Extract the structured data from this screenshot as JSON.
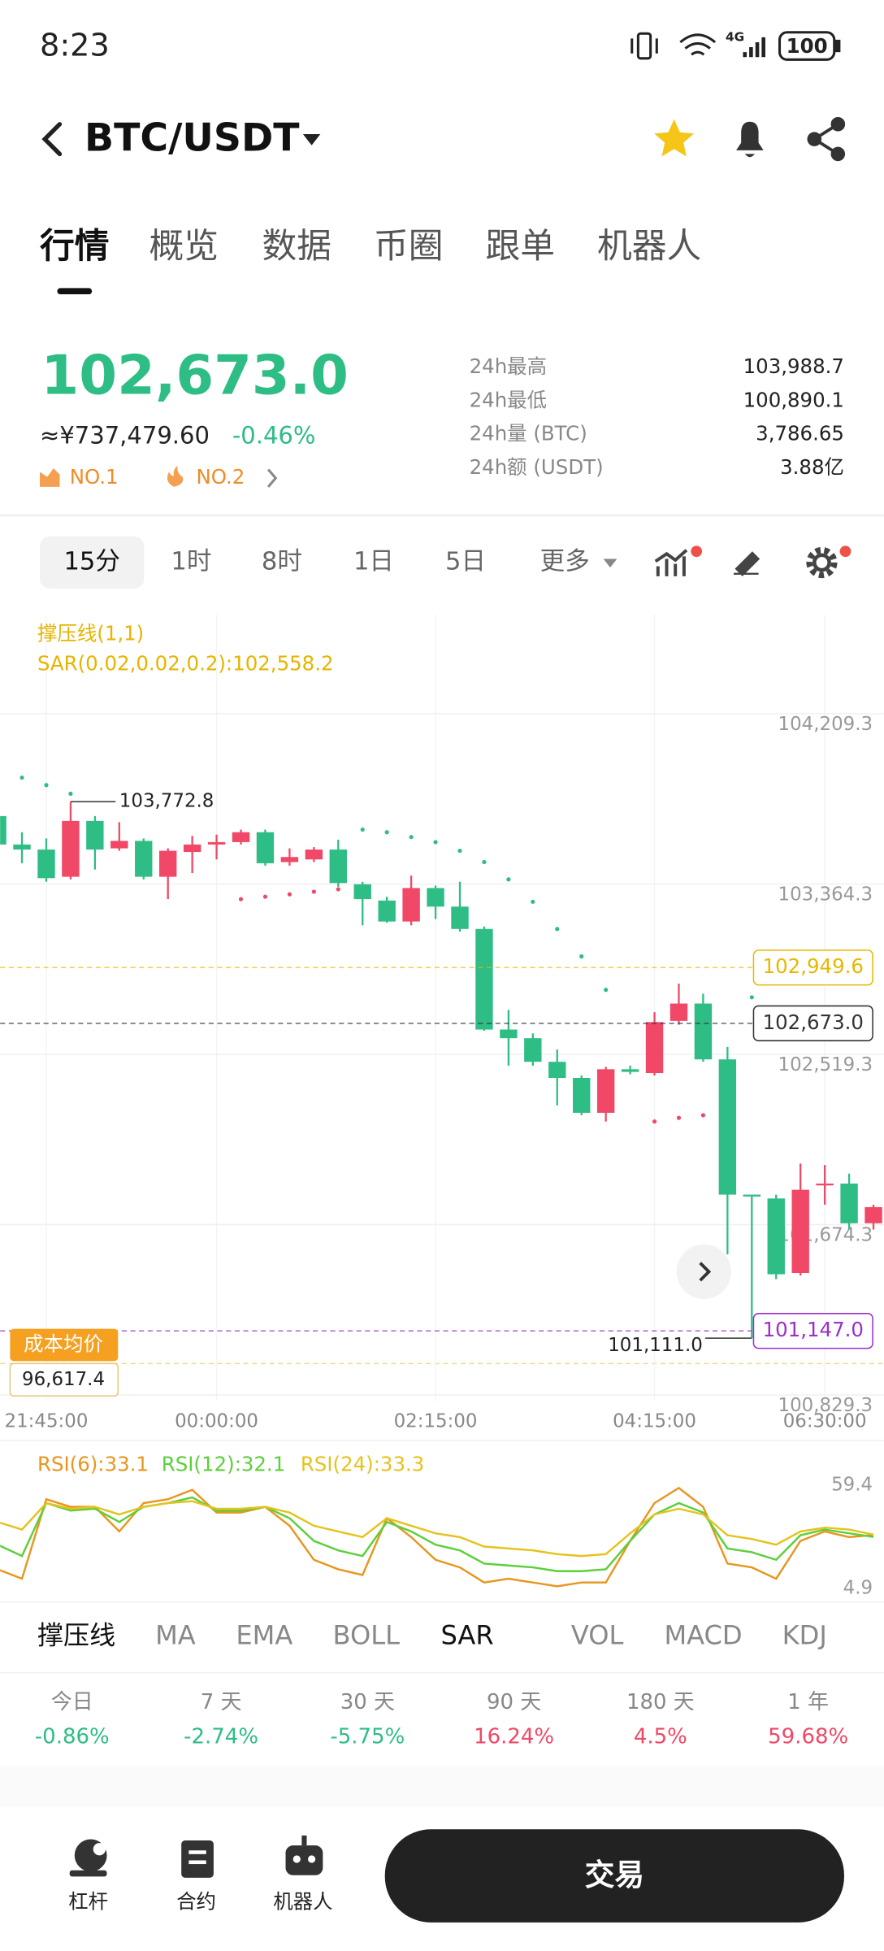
{
  "status": {
    "time": "8:23",
    "network": "4G",
    "battery": "100"
  },
  "header": {
    "pair": "BTC/USDT"
  },
  "tabs": [
    "行情",
    "概览",
    "数据",
    "币圈",
    "跟单",
    "机器人"
  ],
  "ticker": {
    "price": "102,673.0",
    "cny": "≈¥737,479.60",
    "change": "-0.46%",
    "ranks": [
      "NO.1",
      "NO.2"
    ],
    "stats": [
      {
        "label": "24h最高",
        "value": "103,988.7"
      },
      {
        "label": "24h最低",
        "value": "100,890.1"
      },
      {
        "label": "24h量 (BTC)",
        "value": "3,786.65"
      },
      {
        "label": "24h额 (USDT)",
        "value": "3.88亿"
      }
    ]
  },
  "intervals": [
    "15分",
    "1时",
    "8时",
    "1日",
    "5日",
    "更多"
  ],
  "chart": {
    "type": "candlestick",
    "indicator_labels": [
      "撑压线(1,1)",
      "SAR(0.02,0.02,0.2):102,558.2"
    ],
    "up_color": "#f04866",
    "down_color": "#2ebd85",
    "sar_color": "#2ebd85",
    "sar_below_color": "#f04866",
    "ylim": [
      100800,
      104700
    ],
    "yticks": [
      {
        "value": 104209.3,
        "label": "104,209.3"
      },
      {
        "value": 103364.3,
        "label": "103,364.3"
      },
      {
        "value": 102519.3,
        "label": "102,519.3"
      },
      {
        "value": 101674.3,
        "label": "101,674.3"
      },
      {
        "value": 100829.3,
        "label": "100,829.3"
      }
    ],
    "categories": [
      null,
      null,
      "21:45:00",
      null,
      null,
      null,
      null,
      null,
      null,
      "00:00:00",
      null,
      null,
      null,
      null,
      null,
      null,
      null,
      null,
      "02:15:00",
      null,
      null,
      null,
      null,
      null,
      null,
      null,
      null,
      "04:15:00",
      null,
      null,
      null,
      null,
      null,
      null,
      "06:30:00",
      null,
      null
    ],
    "candles": [
      {
        "open": 103701,
        "high": 103714,
        "low": 103529,
        "close": 103560
      },
      {
        "open": 103560,
        "high": 103621,
        "low": 103467,
        "close": 103535
      },
      {
        "open": 103535,
        "high": 103590,
        "low": 103375,
        "close": 103393
      },
      {
        "open": 103400,
        "high": 103772.8,
        "low": 103387,
        "close": 103677
      },
      {
        "open": 103677,
        "high": 103701,
        "low": 103436,
        "close": 103535
      },
      {
        "open": 103541,
        "high": 103671,
        "low": 103529,
        "close": 103578
      },
      {
        "open": 103578,
        "high": 103590,
        "low": 103387,
        "close": 103400
      },
      {
        "open": 103400,
        "high": 103541,
        "low": 103289,
        "close": 103529
      },
      {
        "open": 103523,
        "high": 103603,
        "low": 103418,
        "close": 103560
      },
      {
        "open": 103560,
        "high": 103609,
        "low": 103486,
        "close": 103572
      },
      {
        "open": 103572,
        "high": 103634,
        "low": 103560,
        "close": 103621
      },
      {
        "open": 103621,
        "high": 103634,
        "low": 103455,
        "close": 103467
      },
      {
        "open": 103473,
        "high": 103541,
        "low": 103455,
        "close": 103498
      },
      {
        "open": 103486,
        "high": 103547,
        "low": 103473,
        "close": 103535
      },
      {
        "open": 103535,
        "high": 103584,
        "low": 103350,
        "close": 103369
      },
      {
        "open": 103363,
        "high": 103375,
        "low": 103159,
        "close": 103289
      },
      {
        "open": 103282,
        "high": 103301,
        "low": 103172,
        "close": 103178
      },
      {
        "open": 103178,
        "high": 103406,
        "low": 103159,
        "close": 103344
      },
      {
        "open": 103344,
        "high": 103356,
        "low": 103190,
        "close": 103252
      },
      {
        "open": 103252,
        "high": 103375,
        "low": 103128,
        "close": 103141
      },
      {
        "open": 103141,
        "high": 103153,
        "low": 102636,
        "close": 102642
      },
      {
        "open": 102642,
        "high": 102740,
        "low": 102463,
        "close": 102599
      },
      {
        "open": 102599,
        "high": 102623,
        "low": 102463,
        "close": 102482
      },
      {
        "open": 102482,
        "high": 102543,
        "low": 102266,
        "close": 102402
      },
      {
        "open": 102402,
        "high": 102414,
        "low": 102217,
        "close": 102229
      },
      {
        "open": 102229,
        "high": 102457,
        "low": 102186,
        "close": 102445
      },
      {
        "open": 102445,
        "high": 102463,
        "low": 102420,
        "close": 102432
      },
      {
        "open": 102426,
        "high": 102728,
        "low": 102414,
        "close": 102679
      },
      {
        "open": 102685,
        "high": 102870,
        "low": 102666,
        "close": 102771
      },
      {
        "open": 102771,
        "high": 102820,
        "low": 102482,
        "close": 102494
      },
      {
        "open": 102494,
        "high": 102556,
        "low": 101527,
        "close": 101823
      },
      {
        "open": 101823,
        "high": 101823,
        "low": 101111,
        "close": 101816
      },
      {
        "open": 101804,
        "high": 101823,
        "low": 101404,
        "close": 101428
      },
      {
        "open": 101434,
        "high": 101977,
        "low": 101422,
        "close": 101847
      },
      {
        "open": 101872,
        "high": 101970,
        "low": 101773,
        "close": 101878
      },
      {
        "open": 101878,
        "high": 101927,
        "low": 101650,
        "close": 101681
      },
      {
        "open": 101681,
        "high": 101773,
        "low": 101650,
        "close": 101761
      }
    ],
    "sar": [
      null,
      103892,
      103855,
      103812,
      null,
      null,
      null,
      null,
      null,
      null,
      103289,
      103301,
      103313,
      103326,
      103338,
      103634,
      103621,
      103597,
      103572,
      103529,
      103473,
      103387,
      103276,
      103141,
      103005,
      102839,
      null,
      102186,
      102204,
      102217,
      null,
      102802,
      null,
      null,
      null,
      null,
      null
    ],
    "price_lines": [
      {
        "value": 102949.6,
        "label": "102,949.6",
        "color": "#e6b800"
      },
      {
        "value": 102673.0,
        "label": "102,673.0",
        "color": "#333333"
      },
      {
        "value": 101147.0,
        "label": "101,147.0",
        "color": "#9b30c8"
      }
    ],
    "high": {
      "value": 103772.8,
      "label": "103,772.8"
    },
    "low": {
      "value": 101111.0,
      "label": "101,111.0"
    },
    "cost": {
      "title": "成本均价",
      "label": "96,617.4"
    }
  },
  "rsi": {
    "type": "line",
    "ylim": [
      4.9,
      59.4
    ],
    "yticks": [
      59.4,
      4.9
    ],
    "series": [
      {
        "name": "RSI(6):33.1",
        "color": "#e8961e",
        "values": [
          15,
          10,
          52,
          48,
          48,
          35,
          50,
          52,
          57,
          45,
          45,
          48,
          38,
          20,
          15,
          12,
          42,
          32,
          20,
          16,
          8,
          10,
          8,
          6,
          8,
          8,
          30,
          50,
          58,
          48,
          18,
          16,
          10,
          30,
          35,
          32,
          33.1
        ]
      },
      {
        "name": "RSI(12):32.1",
        "color": "#5ccf3a",
        "values": [
          28,
          22,
          50,
          46,
          47,
          40,
          48,
          50,
          53,
          46,
          46,
          48,
          42,
          30,
          25,
          22,
          40,
          35,
          28,
          25,
          18,
          17,
          16,
          14,
          14,
          15,
          30,
          44,
          50,
          45,
          26,
          24,
          20,
          33,
          36,
          34,
          32.1
        ]
      },
      {
        "name": "RSI(24):33.3",
        "color": "#e6c21e",
        "values": [
          40,
          36,
          50,
          47,
          48,
          44,
          48,
          50,
          51,
          47,
          47,
          48,
          45,
          38,
          35,
          32,
          42,
          38,
          34,
          32,
          27,
          26,
          25,
          23,
          22,
          23,
          34,
          44,
          47,
          44,
          33,
          31,
          28,
          35,
          37,
          36,
          33.3
        ]
      }
    ]
  },
  "indicators": [
    {
      "name": "撑压线",
      "active": true
    },
    {
      "name": "MA",
      "active": false
    },
    {
      "name": "EMA",
      "active": false
    },
    {
      "name": "BOLL",
      "active": false
    },
    {
      "name": "SAR",
      "active": true
    },
    {
      "name": "VOL",
      "active": false
    },
    {
      "name": "MACD",
      "active": false
    },
    {
      "name": "KDJ",
      "active": false
    }
  ],
  "performance": [
    {
      "period": "今日",
      "change": "-0.86%",
      "color": "#2ebd85"
    },
    {
      "period": "7 天",
      "change": "-2.74%",
      "color": "#2ebd85"
    },
    {
      "period": "30 天",
      "change": "-5.75%",
      "color": "#2ebd85"
    },
    {
      "period": "90 天",
      "change": "16.24%",
      "color": "#f04866"
    },
    {
      "period": "180 天",
      "change": "4.5%",
      "color": "#f04866"
    },
    {
      "period": "1 年",
      "change": "59.68%",
      "color": "#f04866"
    }
  ],
  "nav": [
    "杠杆",
    "合约",
    "机器人"
  ],
  "trade_button": "交易"
}
